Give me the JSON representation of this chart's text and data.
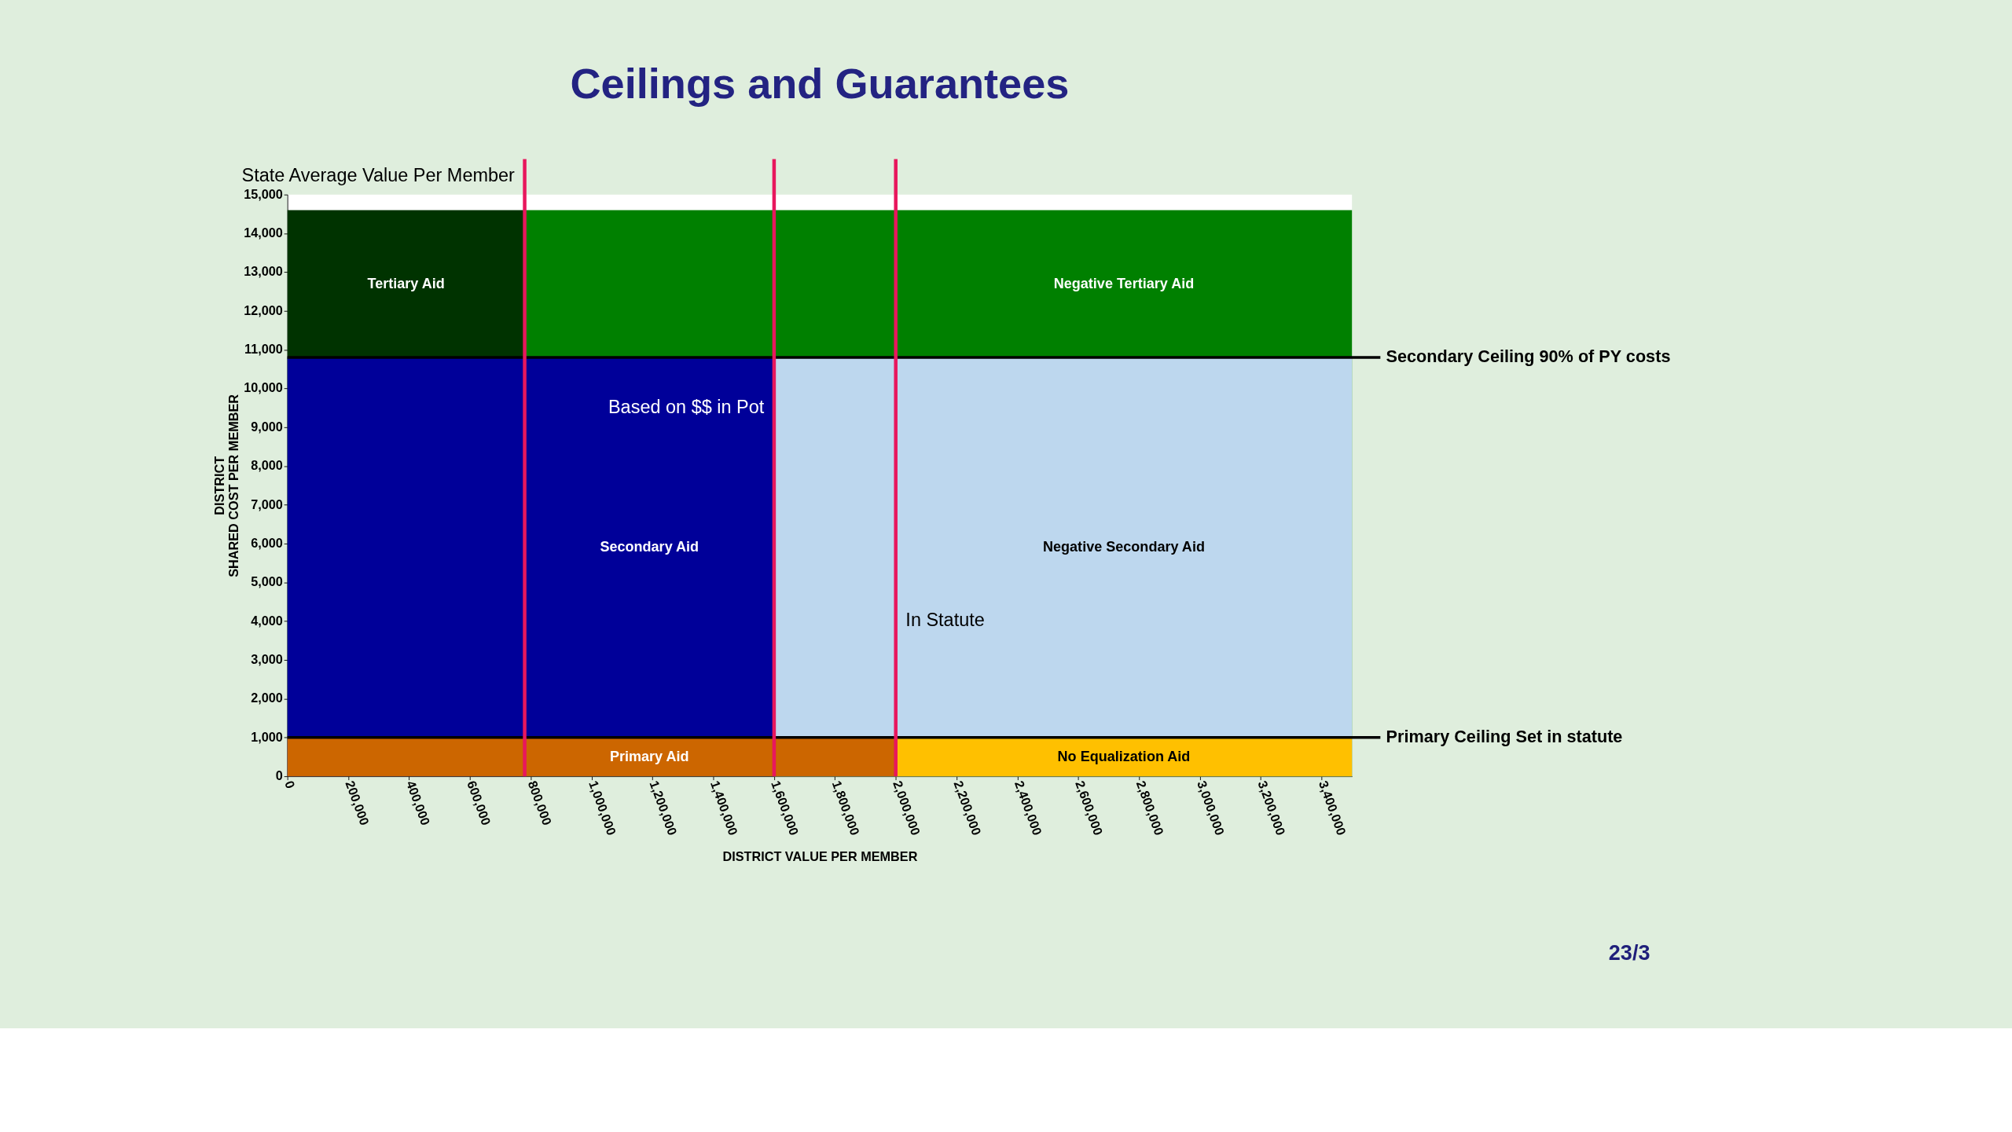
{
  "chart_data": {
    "type": "area",
    "title": "Ceilings and Guarantees",
    "xlabel": "DISTRICT VALUE PER MEMBER",
    "ylabel": [
      "DISTRICT",
      "SHARED COST PER MEMBER"
    ],
    "series": [
      {
        "name": "Tertiary Aid",
        "color": "#003300",
        "x": [
          0,
          780000
        ],
        "values": [
          14600,
          14600
        ]
      },
      {
        "name": "Negative Tertiary Aid",
        "color": "#008000",
        "x": [
          780000,
          3500000
        ],
        "values": [
          14600,
          14600
        ]
      },
      {
        "name": "Secondary Aid",
        "color": "#000099",
        "x": [
          0,
          1600000
        ],
        "values": [
          10800,
          10800
        ]
      },
      {
        "name": "Negative Secondary Aid",
        "color": "#bdd7ee",
        "x": [
          1600000,
          3500000
        ],
        "values": [
          10800,
          10800
        ]
      },
      {
        "name": "Primary Aid",
        "color": "#cc6600",
        "x": [
          0,
          2000000
        ],
        "values": [
          1000,
          1000
        ]
      },
      {
        "name": "No Equalization Aid",
        "color": "#ffc000",
        "x": [
          2000000,
          3500000
        ],
        "values": [
          1000,
          1000
        ]
      }
    ],
    "xlim": [
      0,
      3500000
    ],
    "ylim": [
      0,
      15000
    ],
    "xticks": [
      0,
      {
        "value": 200000,
        "label": "200,000"
      },
      {
        "value": 400000,
        "label": "400,000"
      },
      {
        "value": 600000,
        "label": "600,000"
      },
      {
        "value": 800000,
        "label": "800,000"
      },
      {
        "value": 1000000,
        "label": "1,000,000"
      },
      {
        "value": 1200000,
        "label": "1,200,000"
      },
      {
        "value": 1400000,
        "label": "1,400,000"
      },
      {
        "value": 1600000,
        "label": "1,600,000"
      },
      {
        "value": 1800000,
        "label": "1,800,000"
      },
      {
        "value": 2000000,
        "label": "2,000,000"
      },
      {
        "value": 2200000,
        "label": "2,200,000"
      },
      {
        "value": 2400000,
        "label": "2,400,000"
      },
      {
        "value": 2600000,
        "label": "2,600,000"
      },
      {
        "value": 2800000,
        "label": "2,800,000"
      },
      {
        "value": 3000000,
        "label": "3,000,000"
      },
      {
        "value": 3200000,
        "label": "3,200,000"
      },
      {
        "value": 3400000,
        "label": "3,400,000"
      }
    ],
    "yticks": [
      0,
      {
        "value": 1000,
        "label": "1,000"
      },
      {
        "value": 2000,
        "label": "2,000"
      },
      {
        "value": 3000,
        "label": "3,000"
      },
      {
        "value": 4000,
        "label": "4,000"
      },
      {
        "value": 5000,
        "label": "5,000"
      },
      {
        "value": 6000,
        "label": "6,000"
      },
      {
        "value": 7000,
        "label": "7,000"
      },
      {
        "value": 8000,
        "label": "8,000"
      },
      {
        "value": 9000,
        "label": "9,000"
      },
      {
        "value": 10000,
        "label": "10,000"
      },
      {
        "value": 11000,
        "label": "11,000"
      },
      {
        "value": 12000,
        "label": "12,000"
      },
      {
        "value": 13000,
        "label": "13,000"
      },
      {
        "value": 14000,
        "label": "14,000"
      },
      {
        "value": 15000,
        "label": "15,000"
      }
    ],
    "ref_lines": [
      {
        "axis": "y",
        "value": 10800,
        "label": "Secondary Ceiling 90% of PY costs",
        "color": "#000000"
      },
      {
        "axis": "y",
        "value": 1000,
        "label": "Primary Ceiling Set in statute",
        "color": "#000000"
      },
      {
        "axis": "x",
        "value": 780000,
        "label": "State Average Value Per Member",
        "color": "#e8175d"
      },
      {
        "axis": "x",
        "value": 1600000,
        "label": "Based on $$ in Pot",
        "color": "#e8175d"
      },
      {
        "axis": "x",
        "value": 2000000,
        "label": "In Statute",
        "color": "#e8175d"
      }
    ],
    "annotations": [
      "23/3"
    ]
  }
}
